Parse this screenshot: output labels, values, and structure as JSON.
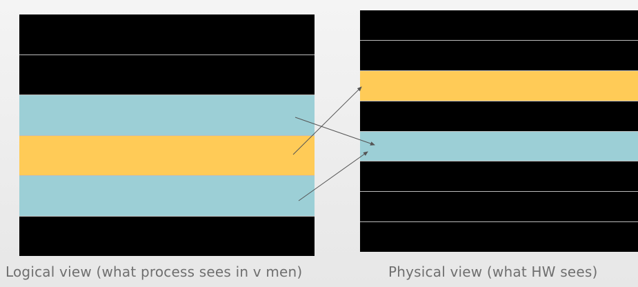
{
  "logical_view": {
    "caption": "Logical view (what process sees in v men)",
    "blocks": [
      "black",
      "black",
      "teal",
      "yellow",
      "teal",
      "black"
    ]
  },
  "physical_view": {
    "caption": "Physical view (what HW sees)",
    "blocks": [
      "black",
      "black",
      "yellow",
      "black",
      "teal",
      "black",
      "black",
      "black"
    ]
  },
  "colors": {
    "black": "#000000",
    "teal": "#9ccfd6",
    "yellow": "#ffcb57",
    "arrow": "#555555"
  }
}
